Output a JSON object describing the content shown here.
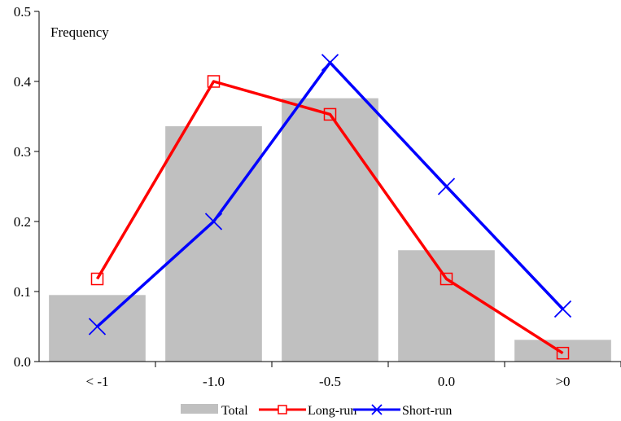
{
  "chart_data": {
    "type": "bar",
    "ylabel": "Frequency",
    "ylim": [
      0,
      0.5
    ],
    "yticks": [
      "0.0",
      "0.1",
      "0.2",
      "0.3",
      "0.4",
      "0.5"
    ],
    "categories": [
      "< -1",
      "-1.0",
      "-0.5",
      "0.0",
      ">0"
    ],
    "grid": false,
    "legend_position": "bottom",
    "series": [
      {
        "name": "Total",
        "type": "bar",
        "color": "#c0c0c0",
        "values": [
          0.095,
          0.336,
          0.376,
          0.159,
          0.031
        ]
      },
      {
        "name": "Long-run",
        "type": "line",
        "marker": "square",
        "color": "#ff0000",
        "values": [
          0.118,
          0.4,
          0.353,
          0.118,
          0.012
        ]
      },
      {
        "name": "Short-run",
        "type": "line",
        "marker": "x",
        "color": "#0000ff",
        "values": [
          0.05,
          0.2,
          0.427,
          0.25,
          0.075
        ]
      }
    ]
  }
}
